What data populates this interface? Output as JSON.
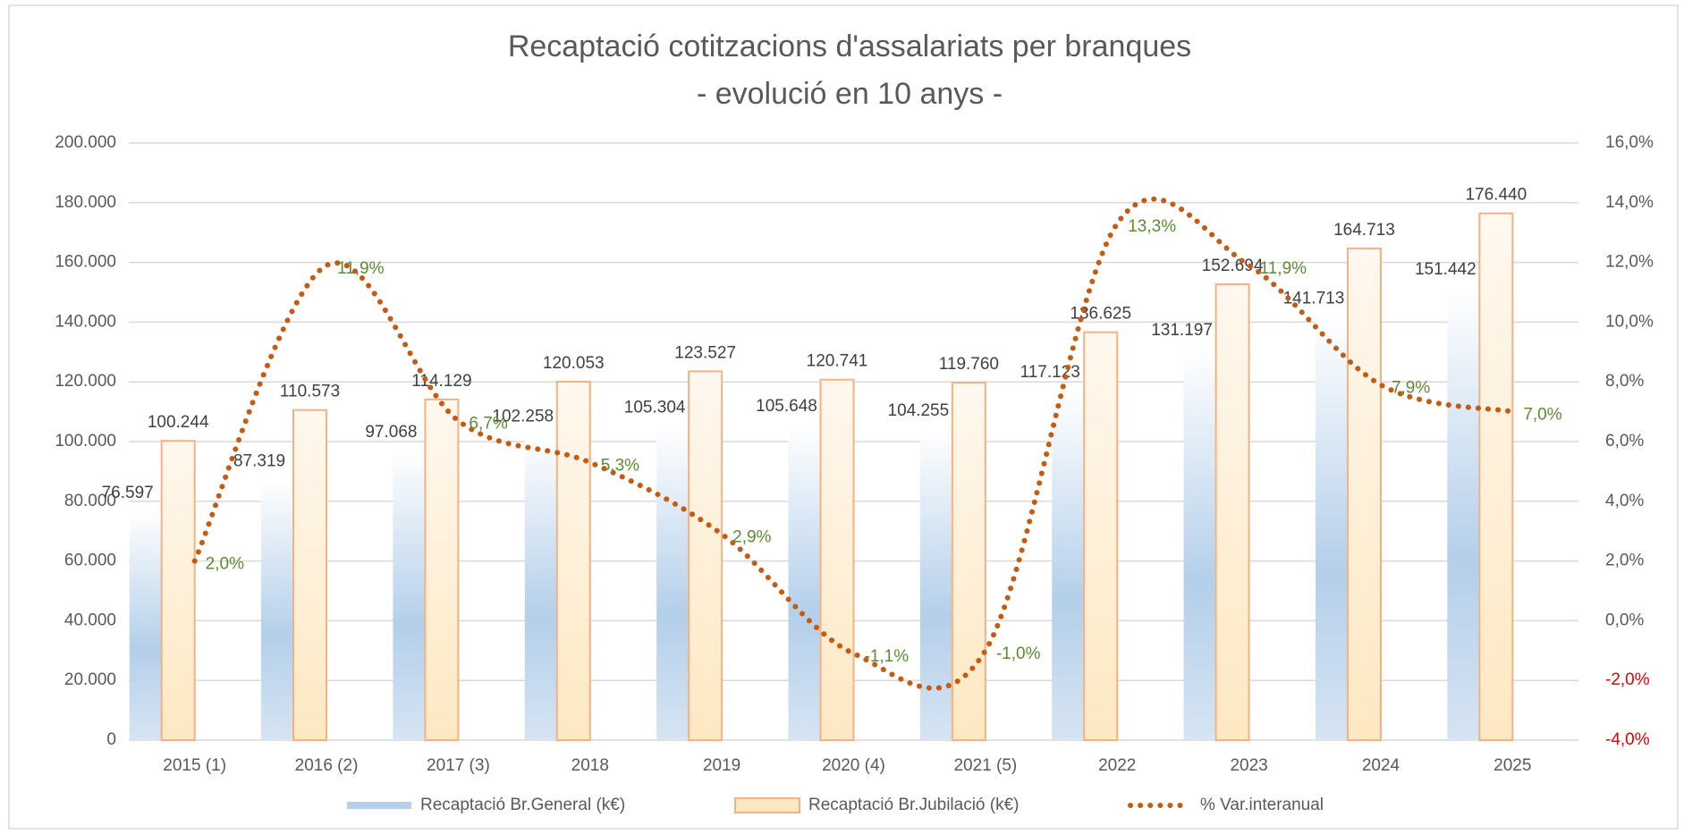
{
  "chart_data": {
    "type": "bar_line",
    "title": "Recaptació cotitzacions d'assalariats per branques",
    "subtitle": "- evolució en 10 anys -",
    "categories": [
      "2015 (1)",
      "2016 (2)",
      "2017 (3)",
      "2018",
      "2019",
      "2020 (4)",
      "2021 (5)",
      "2022",
      "2023",
      "2024",
      "2025"
    ],
    "series": [
      {
        "name": "Recaptació Br.General (k€)",
        "type": "bar",
        "color": "#b4cfea",
        "values": [
          76597,
          87319,
          97068,
          102258,
          105304,
          105648,
          104255,
          117123,
          131197,
          141713,
          151442
        ],
        "value_labels": [
          "76.597",
          "87.319",
          "97.068",
          "102.258",
          "105.304",
          "105.648",
          "104.255",
          "117.123",
          "131.197",
          "141.713",
          "151.442"
        ]
      },
      {
        "name": "Recaptació Br.Jubilació (k€)",
        "type": "bar",
        "color": "#fde8c2",
        "values": [
          100244,
          110573,
          114129,
          120053,
          123527,
          120741,
          119760,
          136625,
          152694,
          164713,
          176440
        ],
        "value_labels": [
          "100.244",
          "110.573",
          "114.129",
          "120.053",
          "123.527",
          "120.741",
          "119.760",
          "136.625",
          "152.694",
          "164.713",
          "176.440"
        ]
      },
      {
        "name": "% Var.interanual",
        "type": "line",
        "axis": "y2",
        "color": "#c55a11",
        "values": [
          2.0,
          11.9,
          6.7,
          5.3,
          2.9,
          -1.1,
          -1.0,
          13.3,
          11.9,
          7.9,
          7.0
        ],
        "value_labels": [
          "2,0%",
          "11,9%",
          "6,7%",
          "5,3%",
          "2,9%",
          "-1,1%",
          "-1,0%",
          "13,3%",
          "11,9%",
          "7,9%",
          "7,0%"
        ]
      }
    ],
    "ylim": [
      0,
      200000
    ],
    "yticks": [
      0,
      {
        "value": 20000,
        "label": "20.000"
      },
      {
        "value": 40000,
        "label": "40.000"
      },
      {
        "value": 60000,
        "label": "60.000"
      },
      {
        "value": 80000,
        "label": "80.000"
      },
      {
        "value": 100000,
        "label": "100.000"
      },
      {
        "value": 120000,
        "label": "120.000"
      },
      {
        "value": 140000,
        "label": "140.000"
      },
      {
        "value": 160000,
        "label": "160.000"
      },
      {
        "value": 180000,
        "label": "180.000"
      },
      {
        "value": 200000,
        "label": "200.000"
      }
    ],
    "y2lim": [
      -4,
      16
    ],
    "y2ticks": [
      {
        "value": -4,
        "label": "-4,0%"
      },
      {
        "value": -2,
        "label": "-2,0%"
      },
      {
        "value": 0,
        "label": "0,0%"
      },
      {
        "value": 2,
        "label": "2,0%"
      },
      {
        "value": 4,
        "label": "4,0%"
      },
      {
        "value": 6,
        "label": "6,0%"
      },
      {
        "value": 8,
        "label": "8,0%"
      },
      {
        "value": 10,
        "label": "10,0%"
      },
      {
        "value": 12,
        "label": "12,0%"
      },
      {
        "value": 14,
        "label": "14,0%"
      },
      {
        "value": 16,
        "label": "16,0%"
      }
    ],
    "y2_negative_color": "#e00000",
    "grid": true,
    "legend": "bottom"
  }
}
